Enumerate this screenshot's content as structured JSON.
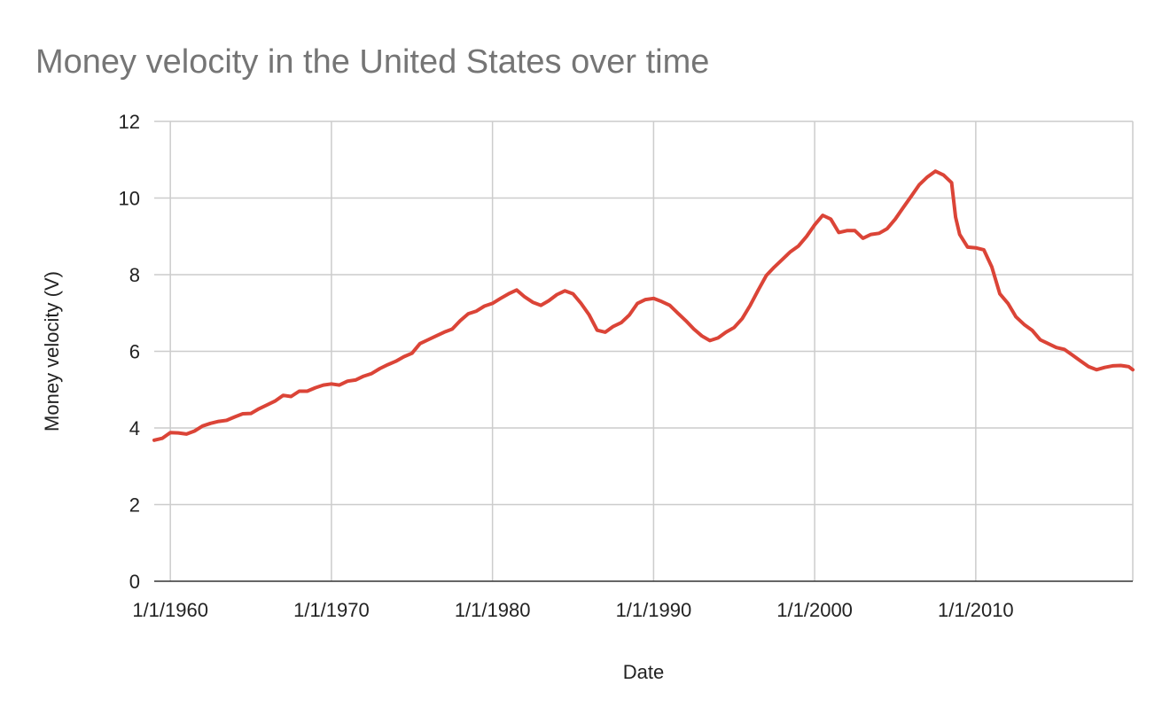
{
  "chart_data": {
    "type": "line",
    "title": "Money velocity in the United States over time",
    "xlabel": "Date",
    "ylabel": "Money velocity (V)",
    "xlim": [
      "1959-01-01",
      "2019-10-01"
    ],
    "ylim": [
      0,
      12
    ],
    "yticks": [
      0,
      2,
      4,
      6,
      8,
      10,
      12
    ],
    "xticks": [
      {
        "date": "1960-01-01",
        "label": "1/1/1960"
      },
      {
        "date": "1970-01-01",
        "label": "1/1/1970"
      },
      {
        "date": "1980-01-01",
        "label": "1/1/1980"
      },
      {
        "date": "1990-01-01",
        "label": "1/1/1990"
      },
      {
        "date": "2000-01-01",
        "label": "1/1/2000"
      },
      {
        "date": "2010-01-01",
        "label": "1/1/2010"
      }
    ],
    "grid": true,
    "legend": "none",
    "series": [
      {
        "color": "#db4437",
        "points": [
          [
            "1959-01-01",
            3.68
          ],
          [
            "1959-07-01",
            3.73
          ],
          [
            "1960-01-01",
            3.88
          ],
          [
            "1960-07-01",
            3.87
          ],
          [
            "1961-01-01",
            3.84
          ],
          [
            "1961-07-01",
            3.92
          ],
          [
            "1962-01-01",
            4.05
          ],
          [
            "1962-07-01",
            4.12
          ],
          [
            "1963-01-01",
            4.17
          ],
          [
            "1963-07-01",
            4.2
          ],
          [
            "1964-01-01",
            4.29
          ],
          [
            "1964-07-01",
            4.37
          ],
          [
            "1965-01-01",
            4.38
          ],
          [
            "1965-07-01",
            4.5
          ],
          [
            "1966-01-01",
            4.6
          ],
          [
            "1966-07-01",
            4.7
          ],
          [
            "1967-01-01",
            4.85
          ],
          [
            "1967-07-01",
            4.82
          ],
          [
            "1968-01-01",
            4.96
          ],
          [
            "1968-07-01",
            4.96
          ],
          [
            "1969-01-01",
            5.05
          ],
          [
            "1969-07-01",
            5.12
          ],
          [
            "1970-01-01",
            5.15
          ],
          [
            "1970-07-01",
            5.12
          ],
          [
            "1971-01-01",
            5.22
          ],
          [
            "1971-07-01",
            5.25
          ],
          [
            "1972-01-01",
            5.35
          ],
          [
            "1972-07-01",
            5.42
          ],
          [
            "1973-01-01",
            5.55
          ],
          [
            "1973-07-01",
            5.65
          ],
          [
            "1974-01-01",
            5.74
          ],
          [
            "1974-07-01",
            5.86
          ],
          [
            "1975-01-01",
            5.95
          ],
          [
            "1975-07-01",
            6.2
          ],
          [
            "1976-01-01",
            6.3
          ],
          [
            "1976-07-01",
            6.4
          ],
          [
            "1977-01-01",
            6.5
          ],
          [
            "1977-07-01",
            6.58
          ],
          [
            "1978-01-01",
            6.8
          ],
          [
            "1978-07-01",
            6.98
          ],
          [
            "1979-01-01",
            7.05
          ],
          [
            "1979-07-01",
            7.18
          ],
          [
            "1980-01-01",
            7.25
          ],
          [
            "1980-07-01",
            7.38
          ],
          [
            "1981-01-01",
            7.5
          ],
          [
            "1981-07-01",
            7.6
          ],
          [
            "1982-01-01",
            7.42
          ],
          [
            "1982-07-01",
            7.28
          ],
          [
            "1983-01-01",
            7.2
          ],
          [
            "1983-07-01",
            7.32
          ],
          [
            "1984-01-01",
            7.48
          ],
          [
            "1984-07-01",
            7.58
          ],
          [
            "1985-01-01",
            7.5
          ],
          [
            "1985-07-01",
            7.25
          ],
          [
            "1986-01-01",
            6.95
          ],
          [
            "1986-07-01",
            6.55
          ],
          [
            "1987-01-01",
            6.5
          ],
          [
            "1987-07-01",
            6.65
          ],
          [
            "1988-01-01",
            6.75
          ],
          [
            "1988-07-01",
            6.95
          ],
          [
            "1989-01-01",
            7.25
          ],
          [
            "1989-07-01",
            7.35
          ],
          [
            "1990-01-01",
            7.38
          ],
          [
            "1990-07-01",
            7.3
          ],
          [
            "1991-01-01",
            7.2
          ],
          [
            "1991-07-01",
            7.0
          ],
          [
            "1992-01-01",
            6.8
          ],
          [
            "1992-07-01",
            6.58
          ],
          [
            "1993-01-01",
            6.4
          ],
          [
            "1993-07-01",
            6.28
          ],
          [
            "1994-01-01",
            6.35
          ],
          [
            "1994-07-01",
            6.5
          ],
          [
            "1995-01-01",
            6.62
          ],
          [
            "1995-07-01",
            6.85
          ],
          [
            "1996-01-01",
            7.2
          ],
          [
            "1996-07-01",
            7.6
          ],
          [
            "1997-01-01",
            7.98
          ],
          [
            "1997-07-01",
            8.2
          ],
          [
            "1998-01-01",
            8.4
          ],
          [
            "1998-07-01",
            8.6
          ],
          [
            "1999-01-01",
            8.75
          ],
          [
            "1999-07-01",
            9.0
          ],
          [
            "2000-01-01",
            9.3
          ],
          [
            "2000-07-01",
            9.55
          ],
          [
            "2001-01-01",
            9.45
          ],
          [
            "2001-07-01",
            9.1
          ],
          [
            "2002-01-01",
            9.15
          ],
          [
            "2002-07-01",
            9.15
          ],
          [
            "2003-01-01",
            8.95
          ],
          [
            "2003-07-01",
            9.05
          ],
          [
            "2004-01-01",
            9.08
          ],
          [
            "2004-07-01",
            9.2
          ],
          [
            "2005-01-01",
            9.45
          ],
          [
            "2005-07-01",
            9.75
          ],
          [
            "2006-01-01",
            10.05
          ],
          [
            "2006-07-01",
            10.35
          ],
          [
            "2007-01-01",
            10.55
          ],
          [
            "2007-07-01",
            10.7
          ],
          [
            "2008-01-01",
            10.6
          ],
          [
            "2008-07-01",
            10.4
          ],
          [
            "2008-10-01",
            9.5
          ],
          [
            "2009-01-01",
            9.05
          ],
          [
            "2009-07-01",
            8.72
          ],
          [
            "2010-01-01",
            8.7
          ],
          [
            "2010-07-01",
            8.65
          ],
          [
            "2011-01-01",
            8.2
          ],
          [
            "2011-07-01",
            7.5
          ],
          [
            "2012-01-01",
            7.25
          ],
          [
            "2012-07-01",
            6.9
          ],
          [
            "2013-01-01",
            6.7
          ],
          [
            "2013-07-01",
            6.55
          ],
          [
            "2014-01-01",
            6.3
          ],
          [
            "2014-07-01",
            6.2
          ],
          [
            "2015-01-01",
            6.1
          ],
          [
            "2015-07-01",
            6.05
          ],
          [
            "2016-01-01",
            5.9
          ],
          [
            "2016-07-01",
            5.75
          ],
          [
            "2017-01-01",
            5.6
          ],
          [
            "2017-07-01",
            5.52
          ],
          [
            "2018-01-01",
            5.58
          ],
          [
            "2018-07-01",
            5.62
          ],
          [
            "2019-01-01",
            5.63
          ],
          [
            "2019-07-01",
            5.6
          ],
          [
            "2019-10-01",
            5.52
          ]
        ]
      }
    ]
  }
}
